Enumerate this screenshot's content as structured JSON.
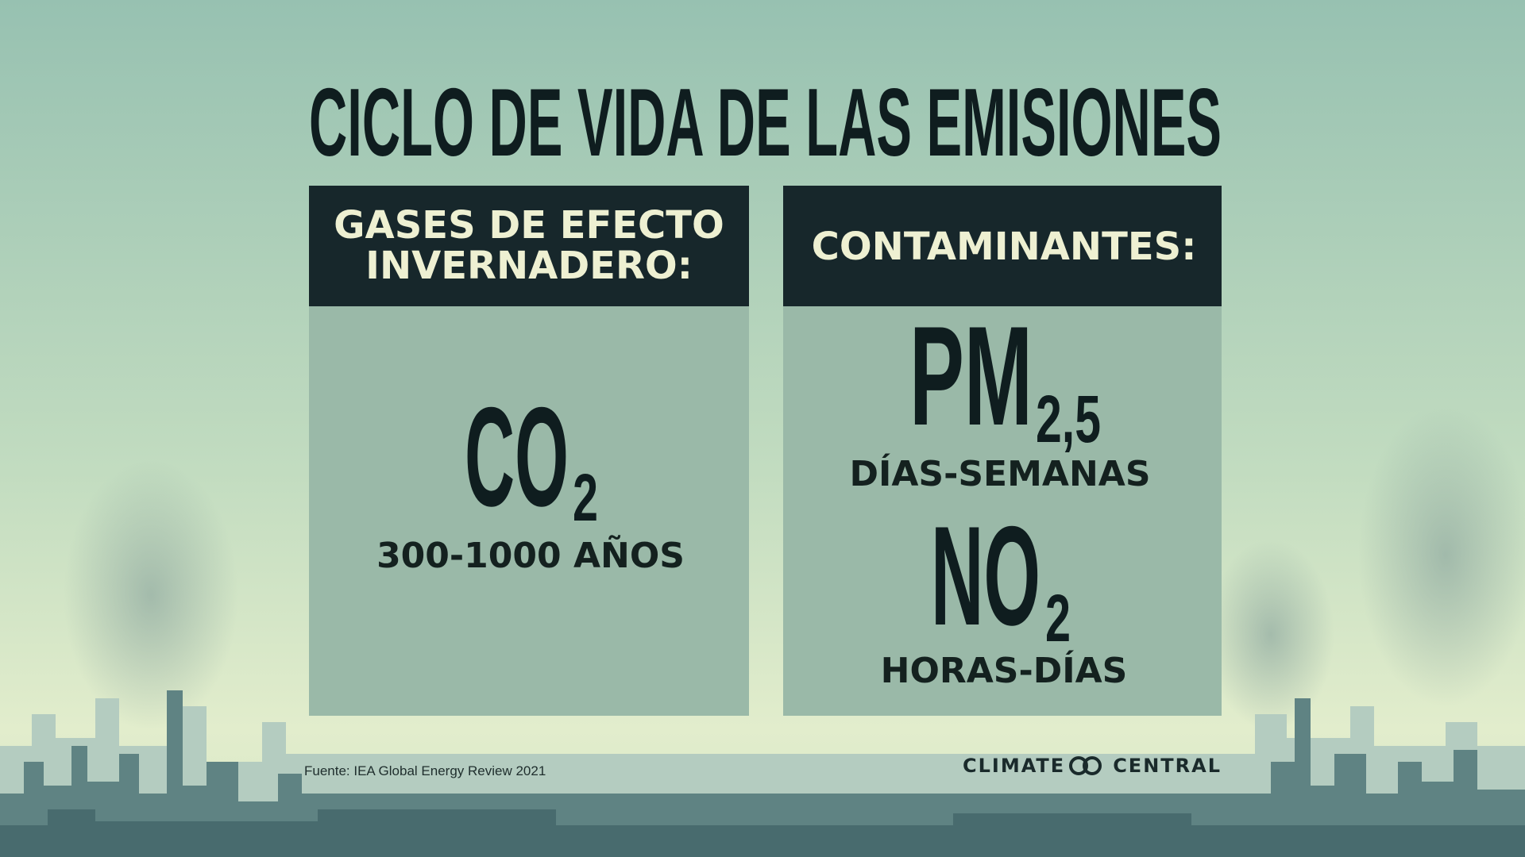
{
  "title": "CICLO DE VIDA DE LAS EMISIONES",
  "panels": [
    {
      "header": [
        "GASES DE EFECTO",
        "INVERNADERO:"
      ],
      "items": [
        {
          "formula": "CO",
          "subscript": "2",
          "duration": "300-1000 AÑOS"
        }
      ]
    },
    {
      "header": [
        "CONTAMINANTES:"
      ],
      "items": [
        {
          "formula": "PM",
          "subscript": "2,5",
          "duration": "DÍAS-SEMANAS"
        },
        {
          "formula": "NO",
          "subscript": "2",
          "duration": "HORAS-DÍAS"
        }
      ]
    }
  ],
  "source": "Fuente: IEA Global Energy Review 2021",
  "logo": [
    "CLIMATE",
    "CENTRAL"
  ]
}
